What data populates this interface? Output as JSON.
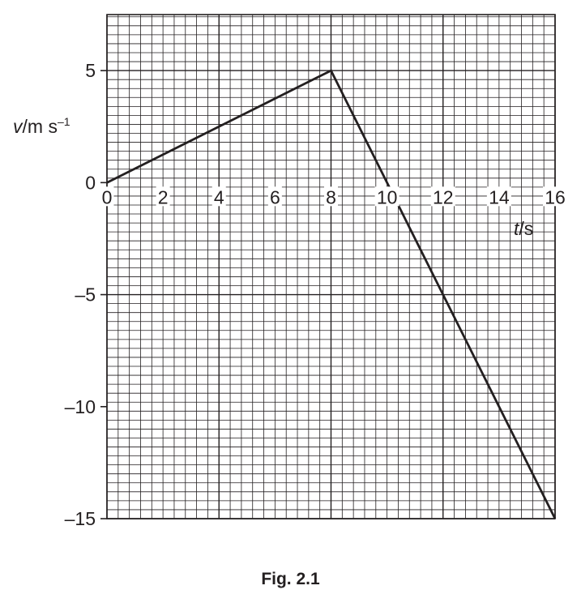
{
  "figure_caption": "Fig. 2.1",
  "chart_data": {
    "type": "line",
    "x_axis": {
      "label_var": "t",
      "label_unit": "s",
      "range": [
        0,
        16
      ],
      "ticks": [
        0,
        2,
        4,
        6,
        8,
        10,
        12,
        14,
        16
      ],
      "tick_labels": [
        "0",
        "2",
        "4",
        "6",
        "8",
        "10",
        "12",
        "14",
        "16"
      ]
    },
    "y_axis": {
      "label_var": "v",
      "label_unit": "m s",
      "label_exp": "–1",
      "range": [
        -15,
        7.5
      ],
      "ticks": [
        5,
        0,
        -5,
        -10,
        -15
      ],
      "tick_labels": [
        "5",
        "0",
        "–5",
        "–10",
        "–15"
      ]
    },
    "grid": {
      "on": true,
      "minor_step": 0.4,
      "major_step_x": 4,
      "major_step_y": 5
    },
    "series": [
      {
        "x": [
          0,
          8,
          16
        ],
        "y": [
          0,
          5,
          -15
        ]
      }
    ]
  }
}
